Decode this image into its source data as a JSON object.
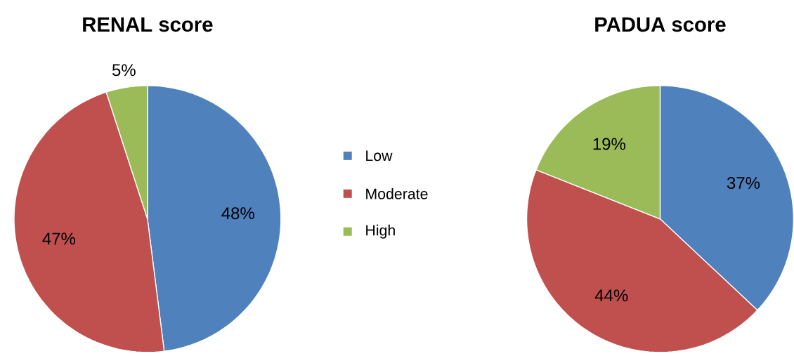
{
  "chart_data": [
    {
      "type": "pie",
      "title": "RENAL score",
      "categories": [
        "Low",
        "Moderate",
        "High"
      ],
      "values": [
        48,
        47,
        5
      ],
      "value_labels": [
        "48%",
        "47%",
        "5%"
      ],
      "colors": [
        "#4f81bd",
        "#c0504d",
        "#9bbb59"
      ],
      "legend": "right"
    },
    {
      "type": "pie",
      "title": "PADUA score",
      "categories": [
        null,
        null,
        null
      ],
      "values": [
        37,
        44,
        19
      ],
      "value_labels": [
        "37%",
        "44%",
        "19%"
      ],
      "colors": [
        "#4f81bd",
        "#c0504d",
        "#9bbb59"
      ]
    }
  ]
}
